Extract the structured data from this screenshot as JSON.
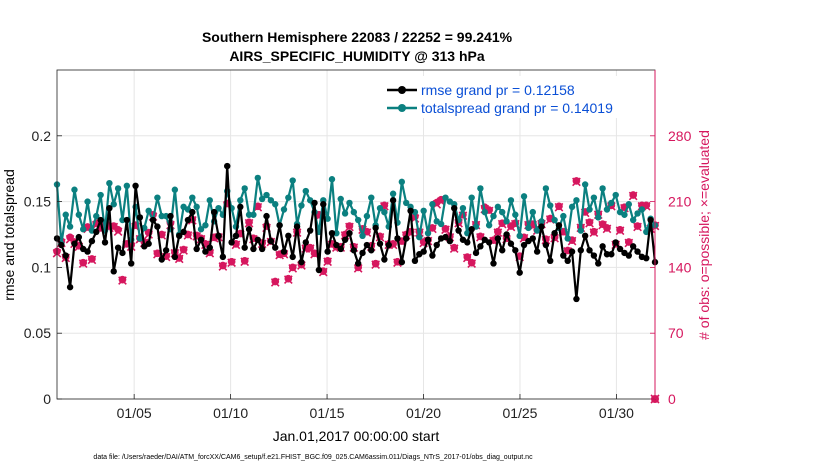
{
  "chart_data": {
    "type": "line",
    "title_line1": "Southern Hemisphere 22083 / 22252 = 99.241%",
    "title_line2": "AIRS_SPECIFIC_HUMIDITY @ 313 hPa",
    "xlabel": "Jan.01,2017 00:00:00 start",
    "ylabel_left": "rmse and totalspread",
    "ylabel_right": "# of obs: o=possible; ×=evaluated",
    "xlim": [
      1,
      32
    ],
    "ylim_left": [
      0,
      0.25
    ],
    "ylim_right": [
      0,
      350
    ],
    "x_ticks": [
      {
        "value": 5,
        "label": "01/05"
      },
      {
        "value": 10,
        "label": "01/10"
      },
      {
        "value": 15,
        "label": "01/15"
      },
      {
        "value": 20,
        "label": "01/20"
      },
      {
        "value": 25,
        "label": "01/25"
      },
      {
        "value": 30,
        "label": "01/30"
      }
    ],
    "y_ticks_left": [
      {
        "value": 0,
        "label": "0"
      },
      {
        "value": 0.05,
        "label": "0.05"
      },
      {
        "value": 0.1,
        "label": "0.1"
      },
      {
        "value": 0.15,
        "label": "0.15"
      },
      {
        "value": 0.2,
        "label": "0.2"
      }
    ],
    "y_ticks_right": [
      {
        "value": 0,
        "label": "0"
      },
      {
        "value": 70,
        "label": "70"
      },
      {
        "value": 140,
        "label": "140"
      },
      {
        "value": 210,
        "label": "210"
      },
      {
        "value": 280,
        "label": "280"
      }
    ],
    "colors": {
      "rmse": "#000000",
      "spread": "#0b8080",
      "obs": "#d6175e",
      "legend_text": "#0a4fd6",
      "right_axis": "#d6175e"
    },
    "series": [
      {
        "name": "rmse grand pr = 0.12158",
        "axis": "left",
        "values": [
          0.122,
          0.117,
          0.109,
          0.085,
          0.118,
          0.123,
          0.114,
          0.112,
          0.12,
          0.127,
          0.136,
          0.119,
          0.145,
          0.097,
          0.115,
          0.111,
          0.136,
          0.103,
          0.162,
          0.138,
          0.116,
          0.118,
          0.136,
          0.131,
          0.106,
          0.113,
          0.139,
          0.108,
          0.124,
          0.127,
          0.136,
          0.142,
          0.114,
          0.121,
          0.112,
          0.115,
          0.142,
          0.124,
          0.108,
          0.177,
          0.119,
          0.124,
          0.146,
          0.115,
          0.129,
          0.114,
          0.121,
          0.114,
          0.139,
          0.12,
          0.115,
          0.132,
          0.112,
          0.124,
          0.108,
          0.131,
          0.104,
          0.119,
          0.128,
          0.149,
          0.098,
          0.148,
          0.112,
          0.126,
          0.117,
          0.114,
          0.121,
          0.126,
          0.113,
          0.103,
          0.111,
          0.117,
          0.113,
          0.13,
          0.118,
          0.106,
          0.117,
          0.151,
          0.122,
          0.104,
          0.122,
          0.143,
          0.105,
          0.11,
          0.112,
          0.121,
          0.109,
          0.117,
          0.122,
          0.123,
          0.12,
          0.145,
          0.128,
          0.121,
          0.119,
          0.129,
          0.111,
          0.116,
          0.121,
          0.119,
          0.103,
          0.122,
          0.113,
          0.125,
          0.118,
          0.113,
          0.096,
          0.117,
          0.12,
          0.122,
          0.112,
          0.131,
          0.117,
          0.105,
          0.126,
          0.132,
          0.109,
          0.105,
          0.112,
          0.076,
          0.113,
          0.124,
          0.113,
          0.109,
          0.103,
          0.116,
          0.11,
          0.11,
          0.119,
          0.114,
          0.111,
          0.109,
          0.116,
          0.112,
          0.108,
          0.107,
          0.136,
          0.104
        ]
      },
      {
        "name": "totalspread grand pr = 0.14019",
        "axis": "left",
        "values": [
          0.163,
          0.118,
          0.14,
          0.131,
          0.159,
          0.14,
          0.129,
          0.15,
          0.128,
          0.139,
          0.155,
          0.128,
          0.164,
          0.148,
          0.16,
          0.136,
          0.162,
          0.121,
          0.146,
          0.122,
          0.13,
          0.143,
          0.136,
          0.153,
          0.139,
          0.139,
          0.129,
          0.159,
          0.125,
          0.146,
          0.144,
          0.153,
          0.146,
          0.129,
          0.132,
          0.151,
          0.135,
          0.145,
          0.14,
          0.158,
          0.145,
          0.131,
          0.151,
          0.16,
          0.14,
          0.14,
          0.168,
          0.152,
          0.155,
          0.151,
          0.148,
          0.132,
          0.144,
          0.153,
          0.166,
          0.133,
          0.147,
          0.158,
          0.151,
          0.142,
          0.127,
          0.151,
          0.137,
          0.167,
          0.126,
          0.152,
          0.141,
          0.149,
          0.142,
          0.136,
          0.124,
          0.139,
          0.153,
          0.132,
          0.145,
          0.142,
          0.131,
          0.156,
          0.134,
          0.165,
          0.149,
          0.146,
          0.142,
          0.123,
          0.143,
          0.126,
          0.148,
          0.135,
          0.133,
          0.153,
          0.15,
          0.148,
          0.136,
          0.145,
          0.126,
          0.153,
          0.131,
          0.16,
          0.142,
          0.132,
          0.139,
          0.146,
          0.142,
          0.135,
          0.151,
          0.14,
          0.124,
          0.154,
          0.13,
          0.142,
          0.128,
          0.135,
          0.16,
          0.147,
          0.136,
          0.13,
          0.139,
          0.122,
          0.146,
          0.151,
          0.128,
          0.163,
          0.144,
          0.153,
          0.138,
          0.16,
          0.144,
          0.149,
          0.155,
          0.142,
          0.14,
          0.148,
          0.136,
          0.141,
          0.144,
          0.127,
          0.137,
          0.132
        ]
      },
      {
        "name": "possible",
        "axis": "right",
        "values": [
          157,
          168,
          151,
          172,
          167,
          163,
          145,
          183,
          149,
          187,
          182,
          187,
          184,
          184,
          180,
          127,
          165,
          164,
          185,
          171,
          167,
          177,
          196,
          155,
          175,
          152,
          187,
          156,
          150,
          159,
          175,
          191,
          174,
          171,
          165,
          156,
          172,
          173,
          142,
          208,
          146,
          165,
          176,
          147,
          188,
          171,
          205,
          166,
          184,
          168,
          125,
          154,
          155,
          128,
          140,
          178,
          143,
          161,
          161,
          155,
          196,
          136,
          147,
          165,
          162,
          162,
          175,
          184,
          162,
          140,
          181,
          178,
          163,
          144,
          173,
          206,
          165,
          165,
          146,
          168,
          175,
          178,
          194,
          178,
          167,
          169,
          182,
          209,
          212,
          181,
          173,
          161,
          188,
          196,
          151,
          145,
          186,
          173,
          204,
          201,
          169,
          178,
          187,
          171,
          184,
          187,
          152,
          172,
          186,
          186,
          180,
          187,
          170,
          192,
          172,
          205,
          178,
          158,
          169,
          232,
          183,
          199,
          188,
          178,
          197,
          186,
          182,
          206,
          165,
          180,
          204,
          167,
          217,
          184,
          206,
          206,
          182,
          185
        ]
      },
      {
        "name": "evaluated",
        "axis": "right",
        "values": [
          155,
          166,
          150,
          170,
          165,
          162,
          144,
          181,
          148,
          185,
          181,
          185,
          182,
          183,
          178,
          126,
          164,
          162,
          183,
          170,
          166,
          175,
          194,
          154,
          174,
          151,
          185,
          155,
          149,
          158,
          174,
          190,
          173,
          170,
          164,
          155,
          171,
          172,
          141,
          206,
          145,
          164,
          175,
          146,
          187,
          170,
          204,
          165,
          182,
          167,
          124,
          153,
          154,
          127,
          139,
          177,
          142,
          160,
          160,
          154,
          194,
          135,
          146,
          164,
          161,
          161,
          174,
          183,
          161,
          139,
          180,
          177,
          162,
          143,
          172,
          205,
          164,
          164,
          145,
          167,
          174,
          177,
          192,
          177,
          166,
          168,
          181,
          207,
          210,
          180,
          172,
          160,
          187,
          195,
          150,
          144,
          185,
          172,
          202,
          200,
          168,
          177,
          186,
          170,
          183,
          186,
          151,
          171,
          185,
          185,
          179,
          186,
          169,
          191,
          171,
          204,
          177,
          157,
          168,
          231,
          182,
          198,
          187,
          177,
          196,
          185,
          181,
          205,
          164,
          179,
          203,
          166,
          216,
          183,
          205,
          205,
          181,
          184
        ]
      }
    ],
    "legend": {
      "placement": "top-right",
      "items": [
        "rmse grand pr = 0.12158",
        "totalspread grand pr = 0.14019"
      ]
    },
    "right_axis_end_marker": "0 obs at x=32",
    "footer": "data file: /Users/raeder/DAI/ATM_forcXX/CAM6_setup/f.e21.FHIST_BGC.f09_025.CAM6assim.011/Diags_NTrS_2017-01/obs_diag_output.nc"
  }
}
